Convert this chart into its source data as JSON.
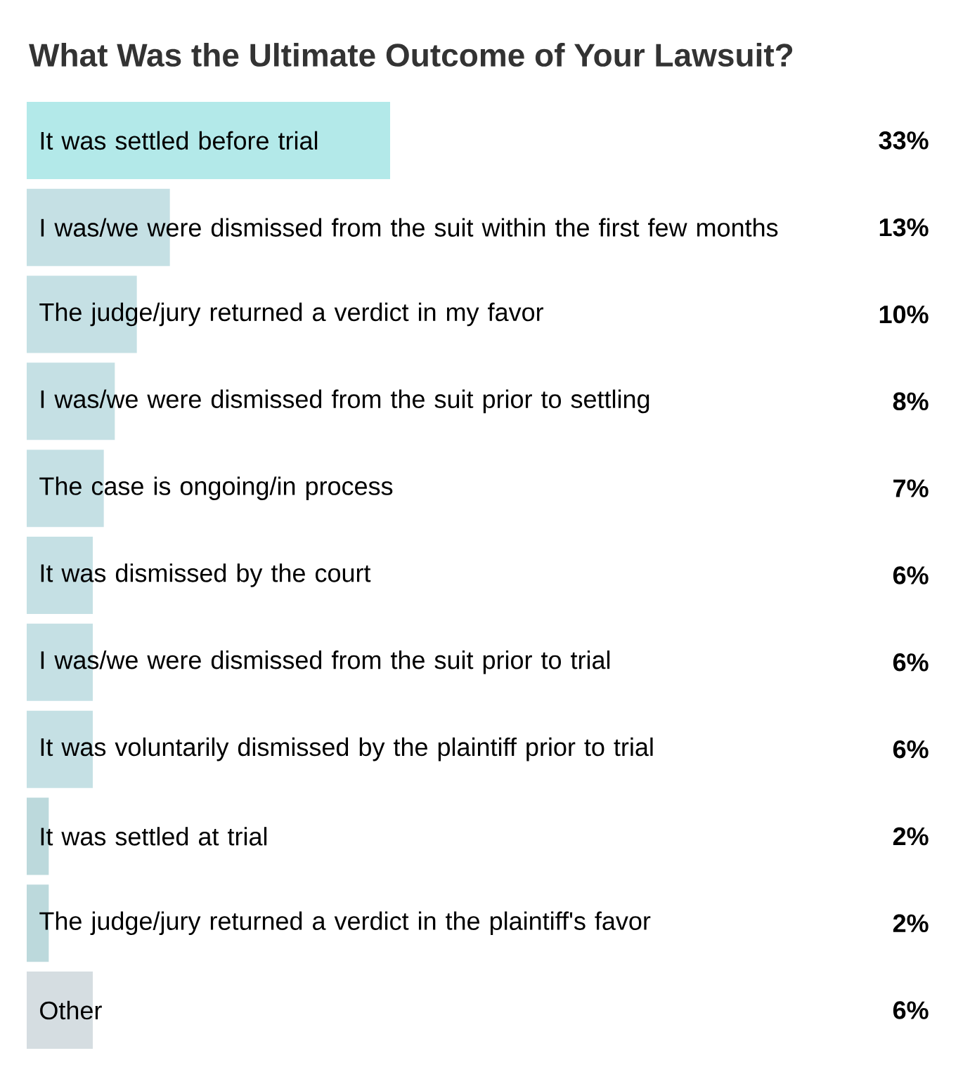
{
  "chart_data": {
    "type": "bar",
    "orientation": "horizontal",
    "title": "What Was the Ultimate Outcome of Your Lawsuit?",
    "categories": [
      "It was settled before trial",
      "I was/we were dismissed from the suit within the first few months",
      "The judge/jury returned a verdict in my favor",
      "I was/we were dismissed from the suit prior to settling",
      "The case is ongoing/in process",
      "It was dismissed by the court",
      "I was/we were dismissed from the suit prior to trial",
      "It was voluntarily dismissed by the plaintiff prior to trial",
      "It was settled at trial",
      "The judge/jury returned a verdict in the plaintiff's favor",
      "Other"
    ],
    "values": [
      33,
      13,
      10,
      8,
      7,
      6,
      6,
      6,
      2,
      2,
      6
    ],
    "value_labels": [
      "33%",
      "13%",
      "10%",
      "8%",
      "7%",
      "6%",
      "6%",
      "6%",
      "2%",
      "2%",
      "6%"
    ],
    "colors": [
      "#b3e9e9",
      "#c5e0e4",
      "#c5e0e4",
      "#c5e0e4",
      "#c5e0e4",
      "#c5e0e4",
      "#c5e0e4",
      "#c5e0e4",
      "#bcd9dc",
      "#bcd9dc",
      "#d5dde1"
    ]
  }
}
